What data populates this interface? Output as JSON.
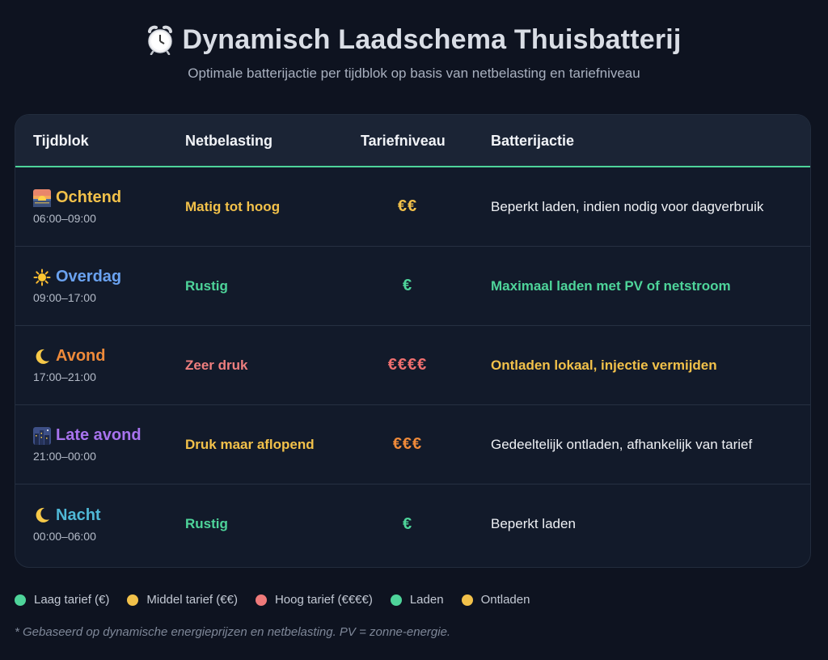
{
  "header": {
    "title": "Dynamisch Laadschema Thuisbatterij",
    "subtitle": "Optimale batterijactie per tijdblok op basis van netbelasting en tariefniveau",
    "icon": "alarm-clock-icon"
  },
  "table": {
    "columns": [
      "Tijdblok",
      "Netbelasting",
      "Tariefniveau",
      "Batterijactie"
    ],
    "rows": [
      {
        "icon": "sunrise-icon",
        "name": "Ochtend",
        "time": "06:00–09:00",
        "load": "Matig tot hoog",
        "tariff": "€€",
        "action": "Beperkt laden, indien nodig voor dagverbruik",
        "name_color": "#f2c14a",
        "load_color": "#f2c14a",
        "tariff_color": "#f2c14a",
        "action_color": "#eef0f4",
        "action_bold": false
      },
      {
        "icon": "sun-icon",
        "name": "Overdag",
        "time": "09:00–17:00",
        "load": "Rustig",
        "tariff": "€",
        "action": "Maximaal laden met PV of netstroom",
        "name_color": "#6aa2f0",
        "load_color": "#4ed49a",
        "tariff_color": "#4ed49a",
        "action_color": "#4ed49a",
        "action_bold": true
      },
      {
        "icon": "crescent-moon-icon",
        "name": "Avond",
        "time": "17:00–21:00",
        "load": "Zeer druk",
        "tariff": "€€€€",
        "action": "Ontladen lokaal, injectie vermijden",
        "name_color": "#ee8a3a",
        "load_color": "#ef7f7f",
        "tariff_color": "#ef6f6f",
        "action_color": "#f2c14a",
        "action_bold": true
      },
      {
        "icon": "city-night-icon",
        "name": "Late avond",
        "time": "21:00–00:00",
        "load": "Druk maar aflopend",
        "tariff": "€€€",
        "action": "Gedeeltelijk ontladen, afhankelijk van tarief",
        "name_color": "#a873ee",
        "load_color": "#f2c14a",
        "tariff_color": "#ee8a3a",
        "action_color": "#eef0f4",
        "action_bold": false
      },
      {
        "icon": "crescent-moon-icon",
        "name": "Nacht",
        "time": "00:00–06:00",
        "load": "Rustig",
        "tariff": "€",
        "action": "Beperkt laden",
        "name_color": "#4fb8d6",
        "load_color": "#4ed49a",
        "tariff_color": "#4ed49a",
        "action_color": "#eef0f4",
        "action_bold": false
      }
    ]
  },
  "legend": [
    {
      "label": "Laag tarief (€)",
      "color": "#4ed49a"
    },
    {
      "label": "Middel tarief (€€)",
      "color": "#f2c14a"
    },
    {
      "label": "Hoog tarief (€€€€)",
      "color": "#ef7a7a"
    },
    {
      "label": "Laden",
      "color": "#4ed49a"
    },
    {
      "label": "Ontladen",
      "color": "#f2c14a"
    }
  ],
  "footnote": "* Gebaseerd op dynamische energieprijzen en netbelasting. PV = zonne-energie."
}
